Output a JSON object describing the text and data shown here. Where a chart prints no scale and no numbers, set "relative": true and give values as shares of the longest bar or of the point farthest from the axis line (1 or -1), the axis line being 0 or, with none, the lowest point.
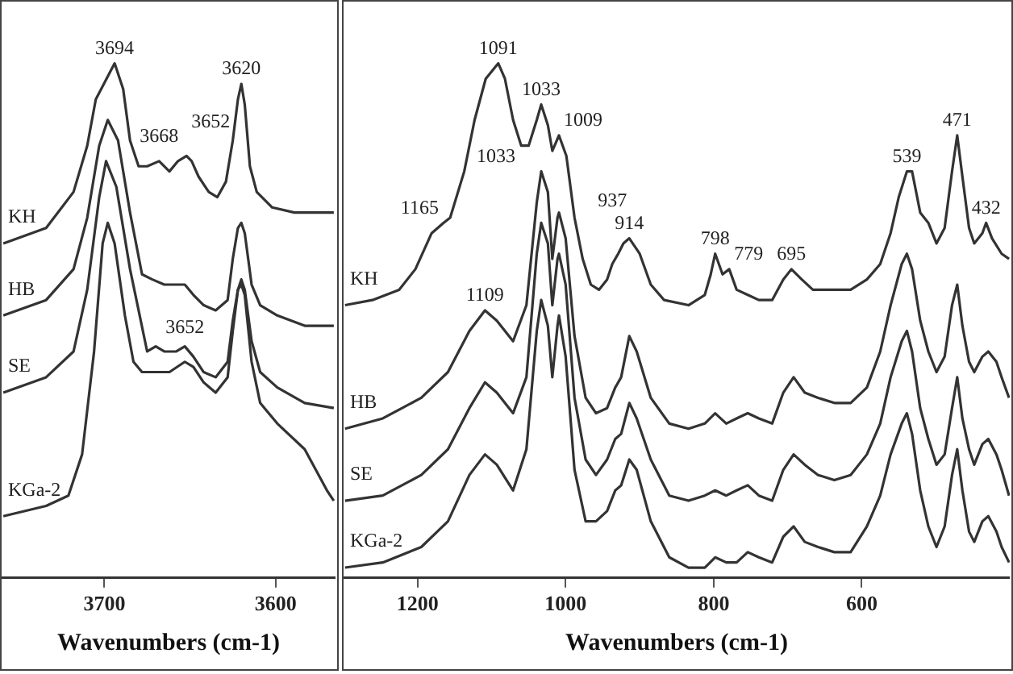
{
  "chart_data": [
    {
      "type": "line",
      "relative": true,
      "xlim": [
        3760,
        3565
      ],
      "xticks": [
        3700,
        3600
      ],
      "xlabel": "Wavenumbers (cm-1)",
      "series": [
        {
          "name": "KH",
          "color": "#333333",
          "x": [
            3759,
            3734,
            3718,
            3710,
            3705,
            3694,
            3689,
            3685,
            3680,
            3675,
            3668,
            3662,
            3657,
            3652,
            3649,
            3645,
            3639,
            3634,
            3629,
            3625,
            3622,
            3620,
            3618,
            3615,
            3611,
            3602,
            3589,
            3566
          ],
          "values": [
            0.65,
            0.68,
            0.75,
            0.84,
            0.93,
            1.0,
            0.95,
            0.85,
            0.8,
            0.8,
            0.81,
            0.79,
            0.81,
            0.82,
            0.81,
            0.78,
            0.75,
            0.74,
            0.77,
            0.85,
            0.93,
            0.96,
            0.92,
            0.8,
            0.75,
            0.72,
            0.71,
            0.71
          ]
        },
        {
          "name": "HB",
          "color": "#333333",
          "x": [
            3759,
            3734,
            3718,
            3710,
            3703,
            3698,
            3692,
            3685,
            3678,
            3672,
            3665,
            3658,
            3653,
            3648,
            3642,
            3635,
            3628,
            3625,
            3622,
            3620,
            3618,
            3614,
            3609,
            3599,
            3583,
            3566
          ],
          "values": [
            0.51,
            0.54,
            0.6,
            0.7,
            0.84,
            0.89,
            0.85,
            0.71,
            0.59,
            0.58,
            0.57,
            0.57,
            0.57,
            0.55,
            0.53,
            0.52,
            0.54,
            0.62,
            0.68,
            0.69,
            0.67,
            0.57,
            0.53,
            0.51,
            0.49,
            0.49
          ]
        },
        {
          "name": "SE",
          "color": "#333333",
          "x": [
            3759,
            3734,
            3718,
            3710,
            3703,
            3699,
            3693,
            3685,
            3680,
            3675,
            3670,
            3665,
            3658,
            3653,
            3648,
            3642,
            3635,
            3628,
            3625,
            3622,
            3620,
            3618,
            3614,
            3609,
            3599,
            3583,
            3566
          ],
          "values": [
            0.36,
            0.39,
            0.44,
            0.56,
            0.74,
            0.81,
            0.76,
            0.6,
            0.52,
            0.44,
            0.45,
            0.44,
            0.44,
            0.45,
            0.43,
            0.4,
            0.39,
            0.42,
            0.5,
            0.56,
            0.58,
            0.56,
            0.46,
            0.4,
            0.37,
            0.34,
            0.33
          ]
        },
        {
          "name": "KGa-2",
          "color": "#333333",
          "x": [
            3759,
            3734,
            3721,
            3713,
            3706,
            3701,
            3698,
            3694,
            3688,
            3683,
            3678,
            3672,
            3662,
            3653,
            3648,
            3642,
            3635,
            3628,
            3625,
            3622,
            3620,
            3618,
            3614,
            3609,
            3599,
            3583,
            3570,
            3566
          ],
          "values": [
            0.12,
            0.14,
            0.16,
            0.24,
            0.44,
            0.65,
            0.69,
            0.65,
            0.51,
            0.42,
            0.4,
            0.4,
            0.4,
            0.42,
            0.41,
            0.38,
            0.36,
            0.39,
            0.48,
            0.56,
            0.57,
            0.55,
            0.42,
            0.34,
            0.3,
            0.25,
            0.17,
            0.15
          ]
        }
      ],
      "annotations": [
        {
          "text": "3694",
          "x": 3694,
          "y": 1.0
        },
        {
          "text": "3620",
          "x": 3620,
          "y": 0.96
        },
        {
          "text": "3668",
          "x": 3668,
          "y": 0.81
        },
        {
          "text": "3652",
          "x": 3652,
          "y": 0.82
        },
        {
          "text": "3652",
          "x": 3653,
          "y": 0.42
        }
      ]
    },
    {
      "type": "line",
      "relative": true,
      "xlim": [
        1300,
        400
      ],
      "xticks": [
        1200,
        1000,
        800,
        600
      ],
      "xlabel": "Wavenumbers (cm-1)",
      "series": [
        {
          "name": "KH",
          "color": "#333333",
          "x": [
            1298,
            1261,
            1225,
            1203,
            1181,
            1165,
            1156,
            1137,
            1123,
            1108,
            1091,
            1082,
            1071,
            1060,
            1050,
            1039,
            1033,
            1024,
            1018,
            1012,
            1009,
            999,
            988,
            977,
            966,
            955,
            944,
            937,
            929,
            922,
            914,
            900,
            885,
            867,
            834,
            812,
            804,
            798,
            788,
            779,
            769,
            754,
            739,
            721,
            706,
            695,
            681,
            666,
            637,
            615,
            593,
            575,
            561,
            550,
            539,
            532,
            521,
            510,
            499,
            488,
            478,
            471,
            464,
            455,
            448,
            437,
            432,
            424,
            411,
            401
          ],
          "values": [
            0.53,
            0.54,
            0.56,
            0.6,
            0.67,
            0.69,
            0.7,
            0.79,
            0.89,
            0.97,
            1.0,
            0.97,
            0.89,
            0.84,
            0.84,
            0.89,
            0.92,
            0.88,
            0.83,
            0.85,
            0.86,
            0.82,
            0.7,
            0.62,
            0.57,
            0.56,
            0.58,
            0.61,
            0.63,
            0.65,
            0.66,
            0.63,
            0.57,
            0.54,
            0.53,
            0.55,
            0.59,
            0.63,
            0.59,
            0.6,
            0.56,
            0.55,
            0.54,
            0.54,
            0.58,
            0.6,
            0.58,
            0.56,
            0.56,
            0.56,
            0.58,
            0.61,
            0.67,
            0.74,
            0.79,
            0.79,
            0.71,
            0.69,
            0.65,
            0.68,
            0.79,
            0.86,
            0.78,
            0.68,
            0.65,
            0.67,
            0.69,
            0.66,
            0.63,
            0.62
          ]
        },
        {
          "name": "HB",
          "color": "#333333",
          "x": [
            1298,
            1247,
            1195,
            1159,
            1130,
            1109,
            1093,
            1071,
            1053,
            1039,
            1033,
            1024,
            1018,
            1011,
            1009,
            1000,
            988,
            973,
            959,
            944,
            933,
            925,
            914,
            904,
            885,
            860,
            834,
            812,
            798,
            783,
            769,
            754,
            739,
            721,
            706,
            692,
            677,
            659,
            637,
            615,
            593,
            575,
            561,
            546,
            539,
            532,
            521,
            510,
            499,
            488,
            478,
            471,
            464,
            455,
            448,
            437,
            429,
            418,
            411,
            401
          ],
          "values": [
            0.29,
            0.31,
            0.35,
            0.4,
            0.48,
            0.52,
            0.5,
            0.46,
            0.53,
            0.73,
            0.79,
            0.75,
            0.62,
            0.7,
            0.71,
            0.66,
            0.47,
            0.35,
            0.32,
            0.33,
            0.37,
            0.39,
            0.47,
            0.44,
            0.35,
            0.3,
            0.29,
            0.3,
            0.32,
            0.3,
            0.31,
            0.32,
            0.31,
            0.3,
            0.36,
            0.39,
            0.36,
            0.35,
            0.34,
            0.34,
            0.37,
            0.44,
            0.53,
            0.61,
            0.63,
            0.6,
            0.5,
            0.44,
            0.4,
            0.43,
            0.53,
            0.57,
            0.49,
            0.42,
            0.4,
            0.43,
            0.44,
            0.42,
            0.39,
            0.35
          ]
        },
        {
          "name": "SE",
          "color": "#333333",
          "x": [
            1298,
            1247,
            1195,
            1159,
            1130,
            1109,
            1093,
            1071,
            1053,
            1039,
            1033,
            1024,
            1018,
            1011,
            1009,
            1000,
            988,
            973,
            959,
            944,
            933,
            925,
            914,
            904,
            885,
            860,
            834,
            812,
            798,
            783,
            769,
            754,
            739,
            721,
            706,
            692,
            677,
            659,
            637,
            615,
            593,
            575,
            561,
            546,
            539,
            532,
            521,
            510,
            499,
            488,
            478,
            471,
            464,
            455,
            448,
            437,
            429,
            418,
            411,
            401
          ],
          "values": [
            0.15,
            0.16,
            0.2,
            0.25,
            0.33,
            0.38,
            0.36,
            0.32,
            0.39,
            0.63,
            0.69,
            0.65,
            0.53,
            0.62,
            0.63,
            0.57,
            0.35,
            0.23,
            0.2,
            0.23,
            0.27,
            0.28,
            0.34,
            0.31,
            0.23,
            0.16,
            0.15,
            0.16,
            0.17,
            0.16,
            0.17,
            0.18,
            0.16,
            0.15,
            0.21,
            0.24,
            0.22,
            0.2,
            0.19,
            0.2,
            0.24,
            0.3,
            0.39,
            0.46,
            0.48,
            0.44,
            0.33,
            0.27,
            0.22,
            0.24,
            0.33,
            0.39,
            0.31,
            0.25,
            0.22,
            0.26,
            0.27,
            0.24,
            0.21,
            0.16
          ]
        },
        {
          "name": "KGa-2",
          "color": "#333333",
          "x": [
            1298,
            1247,
            1195,
            1159,
            1130,
            1109,
            1093,
            1071,
            1053,
            1039,
            1033,
            1024,
            1018,
            1011,
            1009,
            1000,
            988,
            973,
            959,
            944,
            933,
            925,
            914,
            904,
            885,
            860,
            834,
            812,
            798,
            783,
            769,
            754,
            739,
            721,
            706,
            692,
            677,
            659,
            637,
            615,
            593,
            575,
            561,
            546,
            539,
            532,
            521,
            510,
            499,
            488,
            478,
            471,
            464,
            455,
            448,
            437,
            429,
            418,
            411,
            401
          ],
          "values": [
            0.02,
            0.03,
            0.06,
            0.11,
            0.2,
            0.24,
            0.22,
            0.17,
            0.25,
            0.48,
            0.54,
            0.49,
            0.39,
            0.49,
            0.51,
            0.43,
            0.21,
            0.11,
            0.11,
            0.13,
            0.17,
            0.18,
            0.23,
            0.21,
            0.11,
            0.04,
            0.02,
            0.02,
            0.04,
            0.03,
            0.03,
            0.05,
            0.04,
            0.03,
            0.08,
            0.1,
            0.07,
            0.06,
            0.05,
            0.05,
            0.1,
            0.16,
            0.24,
            0.3,
            0.32,
            0.28,
            0.17,
            0.1,
            0.06,
            0.1,
            0.2,
            0.25,
            0.17,
            0.09,
            0.07,
            0.11,
            0.12,
            0.09,
            0.06,
            0.03
          ]
        }
      ],
      "annotations": [
        {
          "text": "1091",
          "x": 1091,
          "y": 1.0
        },
        {
          "text": "471",
          "x": 471,
          "y": 0.86
        },
        {
          "text": "1033",
          "x": 1033,
          "y": 0.92
        },
        {
          "text": "1009",
          "x": 1009,
          "y": 0.86
        },
        {
          "text": "539",
          "x": 539,
          "y": 0.79
        },
        {
          "text": "1165",
          "x": 1165,
          "y": 0.69
        },
        {
          "text": "914",
          "x": 914,
          "y": 0.66
        },
        {
          "text": "937",
          "x": 937,
          "y": 0.61
        },
        {
          "text": "798",
          "x": 798,
          "y": 0.63
        },
        {
          "text": "779",
          "x": 779,
          "y": 0.6
        },
        {
          "text": "695",
          "x": 695,
          "y": 0.6
        },
        {
          "text": "432",
          "x": 432,
          "y": 0.69
        },
        {
          "text": "1033",
          "x": 1033,
          "y": 0.79
        },
        {
          "text": "1109",
          "x": 1109,
          "y": 0.52
        }
      ]
    }
  ]
}
